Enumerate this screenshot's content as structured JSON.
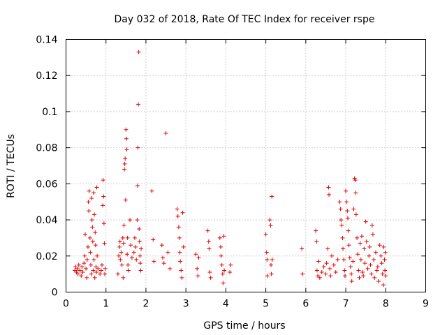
{
  "chart_data": {
    "type": "scatter",
    "title": "Day 032 of 2018, Rate Of TEC Index for receiver rspe",
    "xlabel": "GPS time / hours",
    "ylabel": "ROTI / TECUs",
    "xlim": [
      0,
      9
    ],
    "ylim": [
      0,
      0.14
    ],
    "xticks": [
      "0",
      "1",
      "2",
      "3",
      "4",
      "5",
      "6",
      "7",
      "8",
      "9"
    ],
    "xtick_values": [
      0,
      1,
      2,
      3,
      4,
      5,
      6,
      7,
      8,
      9
    ],
    "yticks": [
      "0",
      "0.02",
      "0.04",
      "0.06",
      "0.08",
      "0.1",
      "0.12",
      "0.14"
    ],
    "ytick_values": [
      0,
      0.02,
      0.04,
      0.06,
      0.08,
      0.1,
      0.12,
      0.14
    ],
    "grid": true,
    "marker": "+",
    "color": "#e00000",
    "series": [
      {
        "name": "ROTI",
        "points": [
          [
            0.22,
            0.012
          ],
          [
            0.24,
            0.014
          ],
          [
            0.26,
            0.011
          ],
          [
            0.28,
            0.013
          ],
          [
            0.3,
            0.01
          ],
          [
            0.32,
            0.015
          ],
          [
            0.35,
            0.012
          ],
          [
            0.38,
            0.009
          ],
          [
            0.4,
            0.014
          ],
          [
            0.42,
            0.011
          ],
          [
            0.45,
            0.016
          ],
          [
            0.47,
            0.02
          ],
          [
            0.48,
            0.032
          ],
          [
            0.5,
            0.013
          ],
          [
            0.52,
            0.008
          ],
          [
            0.53,
            0.018
          ],
          [
            0.55,
            0.025
          ],
          [
            0.56,
            0.05
          ],
          [
            0.57,
            0.045
          ],
          [
            0.58,
            0.056
          ],
          [
            0.6,
            0.03
          ],
          [
            0.61,
            0.022
          ],
          [
            0.62,
            0.015
          ],
          [
            0.63,
            0.01
          ],
          [
            0.64,
            0.052
          ],
          [
            0.65,
            0.04
          ],
          [
            0.66,
            0.036
          ],
          [
            0.67,
            0.028
          ],
          [
            0.68,
            0.012
          ],
          [
            0.69,
            0.055
          ],
          [
            0.7,
            0.018
          ],
          [
            0.71,
            0.043
          ],
          [
            0.72,
            0.008
          ],
          [
            0.73,
            0.033
          ],
          [
            0.74,
            0.026
          ],
          [
            0.75,
            0.014
          ],
          [
            0.76,
            0.011
          ],
          [
            0.77,
            0.058
          ],
          [
            0.78,
            0.02
          ],
          [
            0.8,
            0.013
          ],
          [
            0.85,
            0.01
          ],
          [
            0.88,
            0.012
          ],
          [
            0.9,
            0.015
          ],
          [
            0.92,
            0.048
          ],
          [
            0.93,
            0.062
          ],
          [
            0.94,
            0.053
          ],
          [
            0.95,
            0.038
          ],
          [
            0.96,
            0.027
          ],
          [
            0.97,
            0.01
          ],
          [
            0.98,
            0.013
          ],
          [
            1.3,
            0.01
          ],
          [
            1.32,
            0.02
          ],
          [
            1.34,
            0.025
          ],
          [
            1.35,
            0.028
          ],
          [
            1.36,
            0.018
          ],
          [
            1.38,
            0.022
          ],
          [
            1.4,
            0.015
          ],
          [
            1.42,
            0.03
          ],
          [
            1.43,
            0.008
          ],
          [
            1.44,
            0.027
          ],
          [
            1.45,
            0.037
          ],
          [
            1.46,
            0.068
          ],
          [
            1.47,
            0.071
          ],
          [
            1.48,
            0.074
          ],
          [
            1.49,
            0.051
          ],
          [
            1.5,
            0.09
          ],
          [
            1.51,
            0.085
          ],
          [
            1.52,
            0.079
          ],
          [
            1.53,
            0.021
          ],
          [
            1.54,
            0.03
          ],
          [
            1.55,
            0.015
          ],
          [
            1.56,
            0.012
          ],
          [
            1.6,
            0.04
          ],
          [
            1.62,
            0.026
          ],
          [
            1.65,
            0.019
          ],
          [
            1.7,
            0.022
          ],
          [
            1.72,
            0.03
          ],
          [
            1.74,
            0.025
          ],
          [
            1.76,
            0.018
          ],
          [
            1.78,
            0.04
          ],
          [
            1.79,
            0.059
          ],
          [
            1.8,
            0.08
          ],
          [
            1.81,
            0.104
          ],
          [
            1.82,
            0.133
          ],
          [
            1.83,
            0.035
          ],
          [
            1.84,
            0.028
          ],
          [
            1.85,
            0.02
          ],
          [
            1.86,
            0.016
          ],
          [
            1.87,
            0.012
          ],
          [
            1.88,
            0.024
          ],
          [
            2.15,
            0.056
          ],
          [
            2.18,
            0.029
          ],
          [
            2.2,
            0.017
          ],
          [
            2.4,
            0.026
          ],
          [
            2.42,
            0.019
          ],
          [
            2.45,
            0.016
          ],
          [
            2.5,
            0.088
          ],
          [
            2.55,
            0.022
          ],
          [
            2.6,
            0.013
          ],
          [
            2.78,
            0.046
          ],
          [
            2.8,
            0.042
          ],
          [
            2.82,
            0.036
          ],
          [
            2.84,
            0.03
          ],
          [
            2.85,
            0.022
          ],
          [
            2.86,
            0.017
          ],
          [
            2.88,
            0.012
          ],
          [
            2.9,
            0.008
          ],
          [
            2.92,
            0.044
          ],
          [
            2.94,
            0.025
          ],
          [
            3.25,
            0.021
          ],
          [
            3.28,
            0.013
          ],
          [
            3.3,
            0.009
          ],
          [
            3.32,
            0.019
          ],
          [
            3.55,
            0.034
          ],
          [
            3.57,
            0.028
          ],
          [
            3.58,
            0.024
          ],
          [
            3.6,
            0.011
          ],
          [
            3.62,
            0.008
          ],
          [
            3.85,
            0.03
          ],
          [
            3.87,
            0.025
          ],
          [
            3.88,
            0.02
          ],
          [
            3.9,
            0.015
          ],
          [
            3.92,
            0.01
          ],
          [
            3.93,
            0.005
          ],
          [
            3.95,
            0.031
          ],
          [
            3.96,
            0.012
          ],
          [
            4.1,
            0.011
          ],
          [
            4.12,
            0.015
          ],
          [
            5.0,
            0.032
          ],
          [
            5.02,
            0.022
          ],
          [
            5.03,
            0.018
          ],
          [
            5.04,
            0.009
          ],
          [
            5.1,
            0.04
          ],
          [
            5.12,
            0.037
          ],
          [
            5.13,
            0.015
          ],
          [
            5.14,
            0.01
          ],
          [
            5.15,
            0.053
          ],
          [
            5.16,
            0.018
          ],
          [
            5.9,
            0.024
          ],
          [
            5.92,
            0.01
          ],
          [
            6.25,
            0.034
          ],
          [
            6.27,
            0.028
          ],
          [
            6.28,
            0.012
          ],
          [
            6.3,
            0.009
          ],
          [
            6.32,
            0.017
          ],
          [
            6.35,
            0.008
          ],
          [
            6.4,
            0.011
          ],
          [
            6.45,
            0.014
          ],
          [
            6.5,
            0.01
          ],
          [
            6.52,
            0.016
          ],
          [
            6.55,
            0.024
          ],
          [
            6.57,
            0.058
          ],
          [
            6.58,
            0.054
          ],
          [
            6.6,
            0.013
          ],
          [
            6.62,
            0.009
          ],
          [
            6.65,
            0.02
          ],
          [
            6.7,
            0.015
          ],
          [
            6.75,
            0.011
          ],
          [
            6.8,
            0.018
          ],
          [
            6.85,
            0.05
          ],
          [
            6.87,
            0.046
          ],
          [
            6.88,
            0.04
          ],
          [
            6.9,
            0.037
          ],
          [
            6.92,
            0.03
          ],
          [
            6.93,
            0.024
          ],
          [
            6.95,
            0.018
          ],
          [
            6.97,
            0.012
          ],
          [
            6.98,
            0.009
          ],
          [
            7.0,
            0.056
          ],
          [
            7.02,
            0.05
          ],
          [
            7.04,
            0.045
          ],
          [
            7.05,
            0.041
          ],
          [
            7.06,
            0.034
          ],
          [
            7.08,
            0.026
          ],
          [
            7.1,
            0.019
          ],
          [
            7.12,
            0.014
          ],
          [
            7.14,
            0.01
          ],
          [
            7.15,
            0.006
          ],
          [
            7.18,
            0.017
          ],
          [
            7.2,
            0.046
          ],
          [
            7.22,
            0.063
          ],
          [
            7.24,
            0.062
          ],
          [
            7.25,
            0.055
          ],
          [
            7.26,
            0.043
          ],
          [
            7.28,
            0.03
          ],
          [
            7.3,
            0.021
          ],
          [
            7.32,
            0.012
          ],
          [
            7.34,
            0.008
          ],
          [
            7.36,
            0.027
          ],
          [
            7.38,
            0.018
          ],
          [
            7.4,
            0.031
          ],
          [
            7.42,
            0.011
          ],
          [
            7.44,
            0.009
          ],
          [
            7.46,
            0.024
          ],
          [
            7.48,
            0.016
          ],
          [
            7.5,
            0.039
          ],
          [
            7.52,
            0.028
          ],
          [
            7.55,
            0.013
          ],
          [
            7.58,
            0.02
          ],
          [
            7.6,
            0.025
          ],
          [
            7.62,
            0.015
          ],
          [
            7.64,
            0.01
          ],
          [
            7.66,
            0.037
          ],
          [
            7.68,
            0.032
          ],
          [
            7.7,
            0.018
          ],
          [
            7.72,
            0.008
          ],
          [
            7.75,
            0.022
          ],
          [
            7.78,
            0.012
          ],
          [
            7.8,
            0.014
          ],
          [
            7.82,
            0.006
          ],
          [
            7.85,
            0.026
          ],
          [
            7.88,
            0.02
          ],
          [
            7.9,
            0.016
          ],
          [
            7.92,
            0.01
          ],
          [
            7.94,
            0.004
          ],
          [
            7.95,
            0.025
          ],
          [
            7.97,
            0.018
          ],
          [
            7.98,
            0.012
          ],
          [
            8.0,
            0.009
          ],
          [
            7.99,
            0.022
          ]
        ]
      }
    ]
  }
}
